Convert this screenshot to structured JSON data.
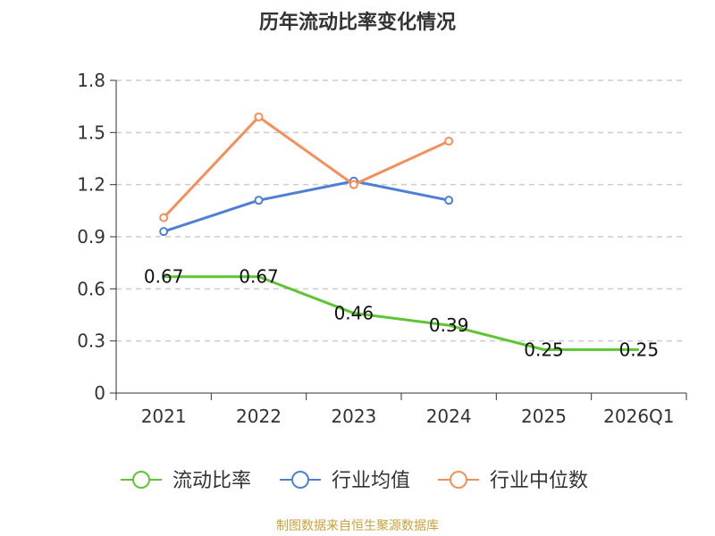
{
  "chart_data": {
    "type": "line",
    "title": "历年流动比率变化情况",
    "categories": [
      "2021",
      "2022",
      "2023",
      "2024",
      "2025",
      "2026Q1"
    ],
    "ylim": [
      0,
      1.8
    ],
    "yticks": [
      "0",
      "0.3",
      "0.6",
      "0.9",
      "1.2",
      "1.5",
      "1.8"
    ],
    "grid": true,
    "legend_position": "bottom",
    "series": [
      {
        "name": "流动比率",
        "color": "#5cc531",
        "values": [
          0.67,
          0.67,
          0.46,
          0.39,
          0.25,
          0.25
        ],
        "labels": [
          "0.67",
          "0.67",
          "0.46",
          "0.39",
          "0.25",
          "0.25"
        ],
        "show_labels": true,
        "show_markers": false
      },
      {
        "name": "行业均值",
        "color": "#4e7fd6",
        "values": [
          0.93,
          1.11,
          1.22,
          1.11,
          null,
          null
        ],
        "show_labels": false,
        "show_markers": true
      },
      {
        "name": "行业中位数",
        "color": "#f58e57",
        "values": [
          1.01,
          1.59,
          1.2,
          1.45,
          null,
          null
        ],
        "show_labels": false,
        "show_markers": true
      }
    ],
    "source": "制图数据来自恒生聚源数据库"
  }
}
